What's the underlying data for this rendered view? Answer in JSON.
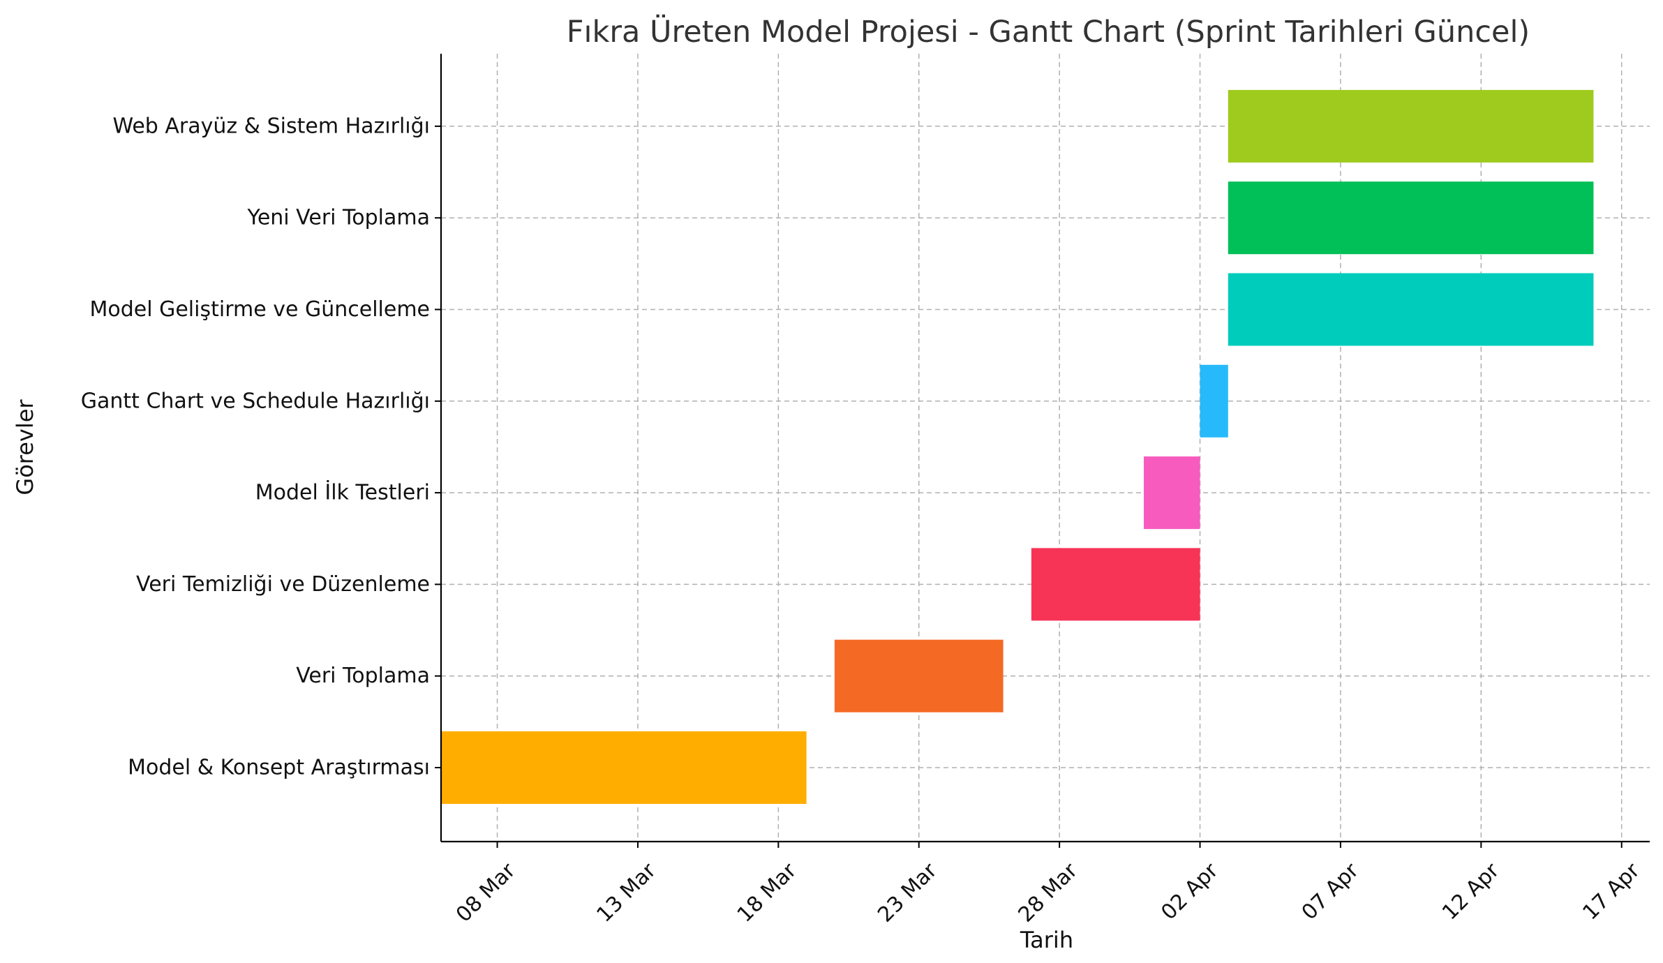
{
  "chart_data": {
    "type": "gantt",
    "title": "Fıkra Üreten Model Projesi - Gantt Chart (Sprint Tarihleri Güncel)",
    "xlabel": "Tarih",
    "ylabel": "Görevler",
    "x_axis_type": "date",
    "xlim": [
      "2025-03-06",
      "2025-04-18"
    ],
    "x_ticks": [
      {
        "date": "2025-03-08",
        "label": "08 Mar"
      },
      {
        "date": "2025-03-13",
        "label": "13 Mar"
      },
      {
        "date": "2025-03-18",
        "label": "18 Mar"
      },
      {
        "date": "2025-03-23",
        "label": "23 Mar"
      },
      {
        "date": "2025-03-28",
        "label": "28 Mar"
      },
      {
        "date": "2025-04-02",
        "label": "02 Apr"
      },
      {
        "date": "2025-04-07",
        "label": "07 Apr"
      },
      {
        "date": "2025-04-12",
        "label": "12 Apr"
      },
      {
        "date": "2025-04-17",
        "label": "17 Apr"
      }
    ],
    "grid": true,
    "tasks": [
      {
        "name": "Model & Konsept Araştırması",
        "start": "2025-03-06",
        "end": "2025-03-19",
        "color": "#FFAE00"
      },
      {
        "name": "Veri Toplama",
        "start": "2025-03-20",
        "end": "2025-03-26",
        "color": "#F46A24"
      },
      {
        "name": "Veri Temizliği ve Düzenleme",
        "start": "2025-03-27",
        "end": "2025-04-02",
        "color": "#F73356"
      },
      {
        "name": "Model İlk Testleri",
        "start": "2025-03-31",
        "end": "2025-04-02",
        "color": "#F75BBE"
      },
      {
        "name": "Gantt Chart ve Schedule Hazırlığı",
        "start": "2025-04-02",
        "end": "2025-04-03",
        "color": "#27BAFB"
      },
      {
        "name": "Model Geliştirme ve Güncelleme",
        "start": "2025-04-03",
        "end": "2025-04-16",
        "color": "#00CCBC"
      },
      {
        "name": "Yeni Veri Toplama",
        "start": "2025-04-03",
        "end": "2025-04-16",
        "color": "#00C057"
      },
      {
        "name": "Web Arayüz & Sistem Hazırlığı",
        "start": "2025-04-03",
        "end": "2025-04-16",
        "color": "#9FCA1E"
      }
    ]
  }
}
